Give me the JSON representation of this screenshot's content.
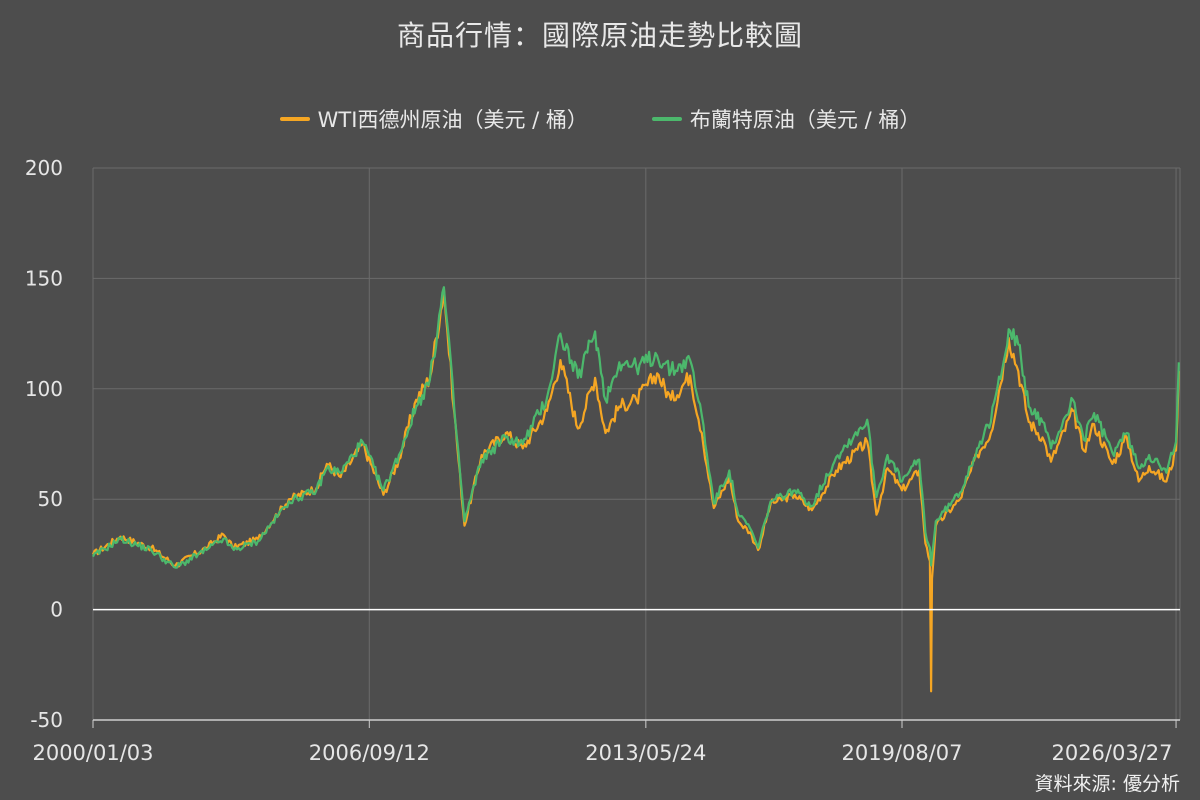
{
  "header": {
    "title": "商品行情：國際原油走勢比較圖"
  },
  "footer": {
    "source": "資料來源: 優分析"
  },
  "colors": {
    "background": "#4d4d4d",
    "grid": "#6b6b6b",
    "zero_line": "#ffffff",
    "wti": "#f5a623",
    "brent": "#4cb86c"
  },
  "chart_data": {
    "type": "line",
    "title": "商品行情：國際原油走勢比較圖",
    "ylim": [
      -50,
      200
    ],
    "yticks": [
      200,
      150,
      100,
      50,
      0,
      -50
    ],
    "xticks": [
      "2000/01/03",
      "2006/09/12",
      "2013/05/24",
      "2019/08/07",
      "2026/03/27"
    ],
    "xlim": [
      "2000/01/03",
      "2026/05/01"
    ],
    "grid": true,
    "legend_position": "top",
    "series": [
      {
        "name": "WTI西德州原油（美元 / 桶）",
        "color": "#f5a623",
        "x": [
          "2000/01/03",
          "2000/09/01",
          "2001/06/01",
          "2002/01/01",
          "2002/10/01",
          "2003/03/01",
          "2003/06/01",
          "2004/01/01",
          "2004/10/01",
          "2005/06/01",
          "2005/09/01",
          "2006/01/01",
          "2006/07/15",
          "2007/01/15",
          "2007/06/01",
          "2007/11/01",
          "2008/03/01",
          "2008/07/03",
          "2008/10/01",
          "2009/01/01",
          "2009/06/01",
          "2010/01/01",
          "2010/06/01",
          "2011/01/01",
          "2011/04/29",
          "2011/10/01",
          "2012/03/01",
          "2012/06/01",
          "2012/10/01",
          "2013/03/01",
          "2013/09/01",
          "2014/01/01",
          "2014/06/20",
          "2014/10/01",
          "2015/01/15",
          "2015/06/01",
          "2015/08/20",
          "2015/12/01",
          "2016/02/11",
          "2016/06/01",
          "2017/01/01",
          "2017/06/01",
          "2018/01/01",
          "2018/10/03",
          "2018/12/24",
          "2019/04/01",
          "2019/08/07",
          "2020/01/06",
          "2020/03/01",
          "2020/04/10",
          "2020/04/20",
          "2020/04/28",
          "2020/06/01",
          "2021/01/01",
          "2021/06/01",
          "2021/10/01",
          "2022/03/08",
          "2022/06/01",
          "2022/09/01",
          "2023/01/01",
          "2023/03/17",
          "2023/09/27",
          "2024/01/01",
          "2024/04/01",
          "2024/09/10",
          "2025/01/15",
          "2025/05/01",
          "2025/08/01",
          "2026/01/01",
          "2026/03/27",
          "2026/04/20"
        ],
        "values": [
          25,
          33,
          28,
          20,
          28,
          34,
          28,
          32,
          50,
          55,
          66,
          60,
          75,
          52,
          68,
          95,
          105,
          145,
          90,
          38,
          70,
          80,
          73,
          90,
          113,
          82,
          105,
          80,
          92,
          95,
          107,
          95,
          106,
          80,
          46,
          60,
          40,
          35,
          27,
          48,
          52,
          45,
          63,
          76,
          43,
          64,
          54,
          63,
          30,
          22,
          -37,
          14,
          38,
          50,
          70,
          80,
          123,
          108,
          85,
          78,
          67,
          90,
          72,
          84,
          66,
          78,
          58,
          65,
          58,
          72,
          108
        ]
      },
      {
        "name": "布蘭特原油（美元 / 桶）",
        "color": "#4cb86c",
        "x": [
          "2000/01/03",
          "2000/09/01",
          "2001/06/01",
          "2002/01/01",
          "2002/10/01",
          "2003/03/01",
          "2003/06/01",
          "2004/01/01",
          "2004/10/01",
          "2005/06/01",
          "2005/09/01",
          "2006/01/01",
          "2006/07/15",
          "2007/01/15",
          "2007/06/01",
          "2007/11/01",
          "2008/03/01",
          "2008/07/03",
          "2008/10/01",
          "2009/01/01",
          "2009/06/01",
          "2010/01/01",
          "2010/06/01",
          "2011/01/01",
          "2011/04/29",
          "2011/10/01",
          "2012/03/01",
          "2012/06/01",
          "2012/10/01",
          "2013/03/01",
          "2013/09/01",
          "2014/01/01",
          "2014/06/20",
          "2014/10/01",
          "2015/01/15",
          "2015/06/01",
          "2015/08/20",
          "2015/12/01",
          "2016/02/11",
          "2016/06/01",
          "2017/01/01",
          "2017/06/01",
          "2018/01/01",
          "2018/10/03",
          "2018/12/24",
          "2019/04/01",
          "2019/08/07",
          "2020/01/06",
          "2020/03/01",
          "2020/04/10",
          "2020/04/20",
          "2020/04/28",
          "2020/06/01",
          "2021/01/01",
          "2021/06/01",
          "2021/10/01",
          "2022/03/08",
          "2022/06/01",
          "2022/09/01",
          "2023/01/01",
          "2023/03/17",
          "2023/09/27",
          "2024/01/01",
          "2024/04/01",
          "2024/09/10",
          "2025/01/15",
          "2025/05/01",
          "2025/08/01",
          "2026/01/01",
          "2026/03/27",
          "2026/04/20"
        ],
        "values": [
          24,
          32,
          27,
          19,
          27,
          32,
          27,
          31,
          49,
          54,
          64,
          62,
          76,
          54,
          70,
          92,
          104,
          146,
          92,
          40,
          68,
          78,
          75,
          96,
          125,
          105,
          126,
          95,
          112,
          110,
          115,
          108,
          113,
          88,
          48,
          63,
          43,
          37,
          28,
          49,
          54,
          47,
          69,
          86,
          51,
          70,
          58,
          68,
          35,
          28,
          20,
          24,
          40,
          53,
          73,
          85,
          127,
          120,
          92,
          85,
          73,
          95,
          77,
          89,
          71,
          80,
          64,
          70,
          62,
          76,
          112
        ]
      }
    ]
  }
}
